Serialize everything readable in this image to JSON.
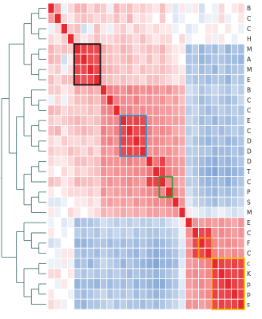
{
  "chart_data": {
    "type": "heatmap",
    "title": "",
    "xlabel": "",
    "ylabel": "",
    "value_range": [
      -1,
      1
    ],
    "colormap": {
      "negative": "#1f5fb4",
      "zero": "#ffffff",
      "positive": "#e8282e"
    },
    "row_labels": [
      "B",
      "C",
      "C",
      "H",
      "M",
      "A",
      "M",
      "E",
      "B",
      "C",
      "C",
      "E",
      "C",
      "D",
      "D",
      "D",
      "T",
      "C",
      "P",
      "S",
      "M",
      "E",
      "C",
      "F",
      "C",
      "c",
      "K",
      "p",
      "p",
      "s"
    ],
    "matrix": [
      [
        1.0,
        0.35,
        -0.05,
        0.1,
        0.25,
        0.25,
        0.1,
        0.2,
        0.15,
        -0.05,
        0.25,
        0.15,
        0.2,
        0.1,
        0.15,
        0.1,
        0.05,
        0.2,
        0.05,
        -0.1,
        0.05,
        -0.05,
        0.05,
        -0.15,
        0.0,
        -0.05,
        0.1,
        0.0,
        0.05,
        0.1
      ],
      [
        0.35,
        1.0,
        0.1,
        0.05,
        0.15,
        0.2,
        0.15,
        0.1,
        0.15,
        0.1,
        0.2,
        0.1,
        0.25,
        0.05,
        0.1,
        0.05,
        0.0,
        0.15,
        0.0,
        -0.1,
        -0.05,
        0.0,
        0.0,
        -0.1,
        -0.05,
        -0.05,
        0.1,
        -0.05,
        0.0,
        0.05
      ],
      [
        -0.05,
        0.1,
        1.0,
        0.15,
        0.2,
        -0.15,
        -0.05,
        0.2,
        0.05,
        -0.05,
        0.1,
        0.15,
        0.05,
        0.15,
        0.1,
        0.05,
        0.1,
        0.05,
        0.05,
        -0.05,
        0.0,
        -0.1,
        -0.05,
        0.0,
        0.05,
        0.05,
        0.0,
        0.05,
        0.0,
        -0.05
      ],
      [
        0.1,
        0.05,
        0.15,
        1.0,
        0.15,
        0.05,
        0.1,
        0.2,
        0.1,
        0.1,
        0.15,
        0.2,
        0.15,
        0.1,
        0.2,
        0.1,
        0.05,
        0.1,
        0.1,
        0.0,
        0.1,
        -0.05,
        0.0,
        0.0,
        0.05,
        -0.05,
        0.05,
        0.0,
        -0.05,
        0.0
      ],
      [
        0.25,
        0.15,
        0.2,
        0.15,
        1.0,
        0.85,
        0.8,
        0.8,
        0.3,
        0.2,
        0.15,
        0.25,
        0.2,
        0.1,
        0.15,
        0.2,
        0.15,
        0.25,
        0.1,
        0.05,
        0.05,
        -0.35,
        -0.25,
        -0.4,
        -0.3,
        -0.35,
        -0.25,
        -0.4,
        -0.3,
        -0.35
      ],
      [
        0.25,
        0.2,
        -0.15,
        0.05,
        0.85,
        1.0,
        0.8,
        0.75,
        0.25,
        0.2,
        0.15,
        0.2,
        0.25,
        0.15,
        0.1,
        0.2,
        0.1,
        0.2,
        0.1,
        0.05,
        0.0,
        -0.3,
        -0.3,
        -0.4,
        -0.35,
        -0.3,
        -0.3,
        -0.35,
        -0.35,
        -0.4
      ],
      [
        0.1,
        0.15,
        -0.05,
        0.1,
        0.8,
        0.8,
        1.0,
        0.8,
        0.3,
        0.25,
        0.2,
        0.15,
        0.2,
        0.1,
        0.2,
        0.15,
        0.15,
        0.2,
        0.15,
        0.1,
        0.05,
        -0.3,
        -0.25,
        -0.35,
        -0.3,
        -0.4,
        -0.25,
        -0.35,
        -0.3,
        -0.3
      ],
      [
        0.2,
        0.1,
        0.2,
        0.2,
        0.8,
        0.75,
        0.8,
        1.0,
        0.25,
        0.2,
        0.15,
        0.2,
        0.15,
        0.15,
        0.1,
        0.2,
        0.2,
        0.15,
        0.1,
        0.05,
        0.1,
        -0.25,
        -0.3,
        -0.3,
        -0.35,
        -0.3,
        -0.3,
        -0.4,
        -0.25,
        -0.3
      ],
      [
        0.15,
        0.15,
        0.05,
        0.1,
        0.3,
        0.25,
        0.3,
        0.25,
        1.0,
        0.5,
        0.45,
        0.4,
        0.5,
        0.45,
        0.4,
        0.45,
        0.4,
        0.35,
        0.4,
        0.3,
        0.25,
        -0.15,
        -0.2,
        -0.3,
        -0.25,
        -0.2,
        -0.25,
        -0.3,
        -0.2,
        -0.25
      ],
      [
        -0.05,
        0.1,
        -0.05,
        0.1,
        0.2,
        0.2,
        0.25,
        0.2,
        0.5,
        1.0,
        0.5,
        0.45,
        0.4,
        0.5,
        0.35,
        0.4,
        0.35,
        0.4,
        0.3,
        0.35,
        0.2,
        -0.2,
        -0.25,
        -0.35,
        -0.3,
        -0.25,
        -0.3,
        -0.35,
        -0.3,
        -0.2
      ],
      [
        0.25,
        0.2,
        0.1,
        0.15,
        0.15,
        0.15,
        0.2,
        0.15,
        0.45,
        0.5,
        1.0,
        0.45,
        0.5,
        0.4,
        0.45,
        0.4,
        0.4,
        0.35,
        0.35,
        0.3,
        0.25,
        -0.25,
        -0.2,
        -0.3,
        -0.35,
        -0.3,
        -0.25,
        -0.3,
        -0.25,
        -0.3
      ],
      [
        0.15,
        0.1,
        0.15,
        0.2,
        0.25,
        0.2,
        0.15,
        0.2,
        0.4,
        0.45,
        0.45,
        1.0,
        0.8,
        0.85,
        0.8,
        0.45,
        0.4,
        0.4,
        0.35,
        0.35,
        0.3,
        -0.2,
        -0.25,
        -0.35,
        -0.3,
        -0.4,
        -0.3,
        -0.35,
        -0.3,
        -0.25
      ],
      [
        0.2,
        0.25,
        0.05,
        0.15,
        0.2,
        0.25,
        0.2,
        0.15,
        0.5,
        0.4,
        0.5,
        0.8,
        1.0,
        0.8,
        0.85,
        0.5,
        0.4,
        0.45,
        0.4,
        0.3,
        0.25,
        -0.25,
        -0.2,
        -0.3,
        -0.35,
        -0.3,
        -0.35,
        -0.3,
        -0.25,
        -0.3
      ],
      [
        0.1,
        0.05,
        0.15,
        0.1,
        0.1,
        0.15,
        0.1,
        0.15,
        0.45,
        0.5,
        0.4,
        0.85,
        0.8,
        1.0,
        0.8,
        0.45,
        0.45,
        0.4,
        0.35,
        0.4,
        0.3,
        -0.2,
        -0.3,
        -0.35,
        -0.4,
        -0.35,
        -0.3,
        -0.4,
        -0.35,
        -0.3
      ],
      [
        0.15,
        0.1,
        0.1,
        0.2,
        0.15,
        0.1,
        0.2,
        0.1,
        0.4,
        0.35,
        0.45,
        0.8,
        0.85,
        0.8,
        1.0,
        0.4,
        0.45,
        0.35,
        0.4,
        0.35,
        0.25,
        -0.25,
        -0.25,
        -0.3,
        -0.3,
        -0.4,
        -0.35,
        -0.35,
        -0.3,
        -0.35
      ],
      [
        0.1,
        0.05,
        0.05,
        0.1,
        0.2,
        0.2,
        0.15,
        0.2,
        0.45,
        0.4,
        0.4,
        0.45,
        0.5,
        0.45,
        0.4,
        1.0,
        0.55,
        0.85,
        0.45,
        0.4,
        0.35,
        -0.25,
        -0.3,
        -0.35,
        -0.4,
        -0.45,
        -0.35,
        -0.4,
        -0.35,
        -0.3
      ],
      [
        0.05,
        0.0,
        0.1,
        0.05,
        0.15,
        0.1,
        0.15,
        0.2,
        0.4,
        0.35,
        0.4,
        0.4,
        0.4,
        0.45,
        0.45,
        0.55,
        1.0,
        0.85,
        0.5,
        0.45,
        0.35,
        -0.2,
        -0.3,
        -0.4,
        -0.45,
        -0.5,
        -0.4,
        -0.45,
        -0.4,
        -0.35
      ],
      [
        0.2,
        0.15,
        0.05,
        0.1,
        0.25,
        0.2,
        0.2,
        0.15,
        0.35,
        0.4,
        0.35,
        0.4,
        0.45,
        0.4,
        0.35,
        0.85,
        0.85,
        1.0,
        0.45,
        0.4,
        0.3,
        -0.25,
        -0.25,
        -0.35,
        -0.4,
        -0.4,
        -0.35,
        -0.45,
        -0.35,
        -0.3
      ],
      [
        0.05,
        0.0,
        0.05,
        0.1,
        0.1,
        0.1,
        0.15,
        0.1,
        0.4,
        0.3,
        0.35,
        0.35,
        0.4,
        0.35,
        0.4,
        0.45,
        0.5,
        0.45,
        1.0,
        0.5,
        0.35,
        -0.15,
        -0.25,
        -0.3,
        -0.35,
        -0.4,
        -0.3,
        -0.35,
        -0.3,
        -0.25
      ],
      [
        -0.1,
        -0.1,
        -0.05,
        0.0,
        0.05,
        0.05,
        0.1,
        0.05,
        0.3,
        0.35,
        0.3,
        0.35,
        0.3,
        0.4,
        0.35,
        0.4,
        0.45,
        0.4,
        0.5,
        1.0,
        0.4,
        -0.1,
        -0.2,
        -0.25,
        -0.3,
        -0.35,
        -0.25,
        -0.3,
        -0.25,
        -0.2
      ],
      [
        0.05,
        -0.05,
        0.0,
        0.1,
        0.05,
        0.0,
        0.05,
        0.1,
        0.25,
        0.2,
        0.25,
        0.3,
        0.25,
        0.3,
        0.25,
        0.35,
        0.35,
        0.3,
        0.35,
        0.4,
        1.0,
        0.05,
        -0.05,
        -0.1,
        -0.15,
        -0.1,
        -0.05,
        -0.1,
        -0.15,
        -0.1
      ],
      [
        -0.05,
        0.0,
        -0.1,
        -0.05,
        -0.35,
        -0.3,
        -0.3,
        -0.25,
        -0.15,
        -0.2,
        -0.25,
        -0.2,
        -0.25,
        -0.2,
        -0.25,
        -0.25,
        -0.2,
        -0.25,
        -0.15,
        -0.1,
        0.05,
        1.0,
        0.4,
        0.35,
        0.4,
        0.35,
        0.4,
        0.35,
        0.3,
        0.4
      ],
      [
        0.05,
        0.0,
        -0.05,
        0.0,
        -0.25,
        -0.3,
        -0.25,
        -0.3,
        -0.2,
        -0.25,
        -0.2,
        -0.25,
        -0.2,
        -0.3,
        -0.25,
        -0.3,
        -0.3,
        -0.25,
        -0.25,
        -0.2,
        -0.05,
        0.4,
        1.0,
        0.8,
        0.85,
        0.4,
        0.45,
        0.4,
        0.35,
        0.4
      ],
      [
        -0.15,
        -0.1,
        0.0,
        0.0,
        -0.4,
        -0.4,
        -0.35,
        -0.3,
        -0.3,
        -0.35,
        -0.3,
        -0.35,
        -0.3,
        -0.35,
        -0.3,
        -0.35,
        -0.4,
        -0.35,
        -0.3,
        -0.25,
        -0.1,
        0.35,
        0.8,
        1.0,
        0.8,
        0.45,
        0.4,
        0.45,
        0.4,
        0.35
      ],
      [
        0.0,
        -0.05,
        0.05,
        0.05,
        -0.3,
        -0.35,
        -0.3,
        -0.35,
        -0.25,
        -0.3,
        -0.35,
        -0.3,
        -0.35,
        -0.4,
        -0.3,
        -0.4,
        -0.45,
        -0.4,
        -0.35,
        -0.3,
        -0.15,
        0.4,
        0.85,
        0.8,
        1.0,
        0.5,
        0.45,
        0.4,
        0.45,
        0.4
      ],
      [
        -0.05,
        -0.05,
        0.05,
        -0.05,
        -0.35,
        -0.3,
        -0.4,
        -0.3,
        -0.2,
        -0.25,
        -0.3,
        -0.4,
        -0.3,
        -0.35,
        -0.4,
        -0.45,
        -0.5,
        -0.4,
        -0.4,
        -0.35,
        -0.1,
        0.35,
        0.4,
        0.45,
        0.5,
        1.0,
        0.85,
        0.8,
        0.85,
        0.8
      ],
      [
        0.1,
        0.1,
        0.0,
        0.05,
        -0.25,
        -0.3,
        -0.25,
        -0.3,
        -0.25,
        -0.3,
        -0.25,
        -0.3,
        -0.35,
        -0.3,
        -0.35,
        -0.35,
        -0.4,
        -0.35,
        -0.3,
        -0.25,
        -0.05,
        0.4,
        0.45,
        0.4,
        0.45,
        0.85,
        1.0,
        0.85,
        0.8,
        0.85
      ],
      [
        0.0,
        -0.05,
        0.05,
        0.0,
        -0.4,
        -0.35,
        -0.35,
        -0.4,
        -0.3,
        -0.35,
        -0.3,
        -0.35,
        -0.3,
        -0.4,
        -0.35,
        -0.4,
        -0.45,
        -0.45,
        -0.35,
        -0.3,
        -0.1,
        0.35,
        0.4,
        0.45,
        0.4,
        0.8,
        0.85,
        1.0,
        0.85,
        0.8
      ],
      [
        0.05,
        0.0,
        0.0,
        -0.05,
        -0.3,
        -0.35,
        -0.3,
        -0.25,
        -0.2,
        -0.3,
        -0.25,
        -0.3,
        -0.25,
        -0.35,
        -0.3,
        -0.35,
        -0.4,
        -0.35,
        -0.3,
        -0.25,
        -0.15,
        0.3,
        0.35,
        0.4,
        0.45,
        0.85,
        0.8,
        0.85,
        1.0,
        0.85
      ],
      [
        0.1,
        0.05,
        -0.05,
        0.0,
        -0.35,
        -0.4,
        -0.3,
        -0.3,
        -0.25,
        -0.2,
        -0.3,
        -0.25,
        -0.3,
        -0.3,
        -0.35,
        -0.3,
        -0.35,
        -0.3,
        -0.25,
        -0.2,
        -0.1,
        0.4,
        0.4,
        0.35,
        0.4,
        0.8,
        0.85,
        0.8,
        0.85,
        1.0
      ]
    ],
    "highlight_boxes": [
      {
        "rows": [
          4,
          7
        ],
        "color": "#111111"
      },
      {
        "rows": [
          11,
          14
        ],
        "color": "#2a9fd6"
      },
      {
        "rows": [
          17,
          18
        ],
        "color": "#3a9a3a"
      },
      {
        "rows": [
          23,
          24
        ],
        "color": "#f0a020"
      },
      {
        "rows": [
          25,
          29
        ],
        "color": "#f5c400"
      }
    ],
    "dendrogram": {
      "color": "#4f7a7a",
      "tree": [
        [
          [
            [
              [
                0,
                1
              ],
              [
                2,
                3
              ]
            ],
            [
              [
                4,
                5
              ],
              [
                6,
                7
              ]
            ]
          ],
          [
            [
              [
                8,
                [
                  9,
                  10
                ]
              ],
              [
                [
                  11,
                  12
                ],
                [
                  13,
                  14
                ]
              ]
            ],
            [
              [
                [
                  15,
                  16
                ],
                17
              ],
              [
                [
                  18,
                  19
                ],
                20
              ]
            ]
          ]
        ],
        [
          [
            21,
            [
              22,
              [
                23,
                24
              ]
            ]
          ],
          [
            [
              25,
              26
            ],
            [
              [
                27,
                28
              ],
              29
            ]
          ]
        ]
      ]
    },
    "grid": true,
    "legend": "none"
  }
}
